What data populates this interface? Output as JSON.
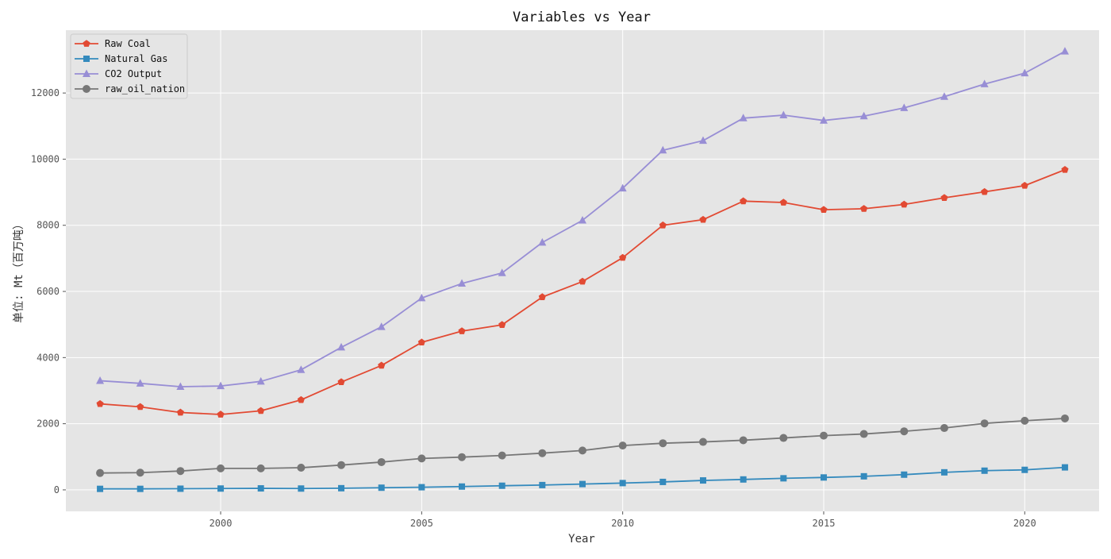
{
  "chart_data": {
    "type": "line",
    "title": "Variables vs Year",
    "xlabel": "Year",
    "ylabel": "单位: Mt（百万吨）",
    "xlim": [
      1996.15,
      2021.85
    ],
    "ylim": [
      -650,
      13900
    ],
    "x_ticks": [
      2000,
      2005,
      2010,
      2015,
      2020
    ],
    "y_ticks": [
      0,
      2000,
      4000,
      6000,
      8000,
      10000,
      12000
    ],
    "grid": true,
    "legend_position": "upper-left",
    "x": [
      1997,
      1998,
      1999,
      2000,
      2001,
      2002,
      2003,
      2004,
      2005,
      2006,
      2007,
      2008,
      2009,
      2010,
      2011,
      2012,
      2013,
      2014,
      2015,
      2016,
      2017,
      2018,
      2019,
      2020,
      2021
    ],
    "series": [
      {
        "name": "Raw Coal",
        "color": "#E24A33",
        "marker": "pentagon",
        "values": [
          2600,
          2510,
          2340,
          2280,
          2390,
          2720,
          3260,
          3760,
          4460,
          4800,
          4990,
          5830,
          6300,
          7020,
          8000,
          8170,
          8730,
          8690,
          8470,
          8500,
          8630,
          8830,
          9010,
          9200,
          9680
        ]
      },
      {
        "name": "Natural Gas",
        "color": "#348ABD",
        "marker": "square",
        "values": [
          30,
          30,
          35,
          40,
          45,
          40,
          50,
          65,
          80,
          100,
          125,
          145,
          175,
          205,
          240,
          285,
          315,
          350,
          375,
          410,
          460,
          530,
          580,
          605,
          680
        ]
      },
      {
        "name": "CO2 Output",
        "color": "#988ED5",
        "marker": "triangle",
        "values": [
          3300,
          3220,
          3120,
          3140,
          3280,
          3630,
          4310,
          4930,
          5800,
          6240,
          6560,
          7480,
          8150,
          9120,
          10270,
          10560,
          11240,
          11330,
          11170,
          11300,
          11550,
          11890,
          12270,
          12600,
          13260
        ]
      },
      {
        "name": "raw_oil_nation",
        "color": "#777777",
        "marker": "circle",
        "values": [
          510,
          520,
          570,
          650,
          650,
          670,
          750,
          840,
          950,
          990,
          1040,
          1110,
          1190,
          1340,
          1410,
          1450,
          1500,
          1570,
          1640,
          1690,
          1770,
          1870,
          2010,
          2090,
          2160
        ]
      }
    ]
  }
}
